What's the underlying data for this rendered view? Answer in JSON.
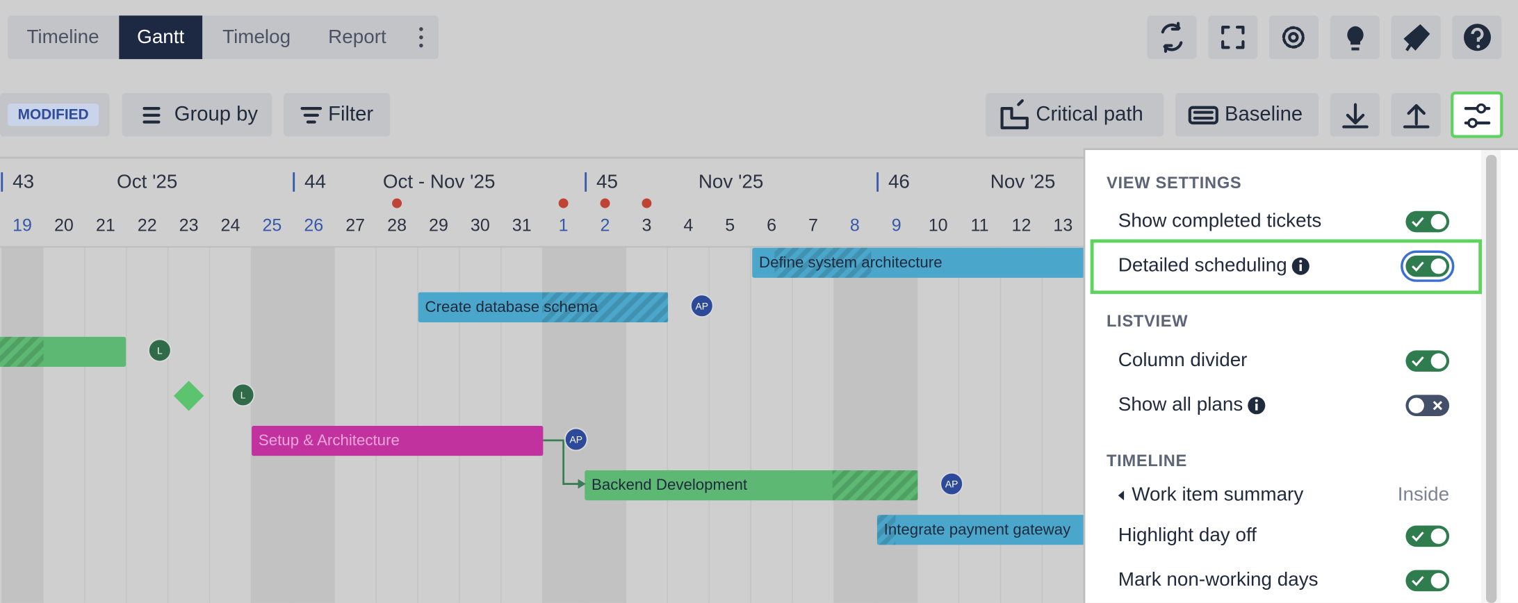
{
  "tabs": {
    "items": [
      "Timeline",
      "Gantt",
      "Timelog",
      "Report"
    ],
    "active": 1
  },
  "toolbar": {
    "badge": "MODIFIED",
    "buttons": [
      "Group by",
      "Filter",
      "Critical path",
      "Baseline"
    ]
  },
  "timeline": {
    "weeks": [
      {
        "number": "43",
        "month": "Oct '25"
      },
      {
        "number": "44",
        "month": "Oct - Nov '25"
      },
      {
        "number": "45",
        "month": "Nov '25"
      },
      {
        "number": "46",
        "month": "Nov '25"
      }
    ],
    "days": [
      {
        "label": "19",
        "weekend": true,
        "marker": false
      },
      {
        "label": "20",
        "weekend": false,
        "marker": false
      },
      {
        "label": "21",
        "weekend": false,
        "marker": false
      },
      {
        "label": "22",
        "weekend": false,
        "marker": false
      },
      {
        "label": "23",
        "weekend": false,
        "marker": false
      },
      {
        "label": "24",
        "weekend": false,
        "marker": false
      },
      {
        "label": "25",
        "weekend": true,
        "marker": false
      },
      {
        "label": "26",
        "weekend": true,
        "marker": false
      },
      {
        "label": "27",
        "weekend": false,
        "marker": false
      },
      {
        "label": "28",
        "weekend": false,
        "marker": true
      },
      {
        "label": "29",
        "weekend": false,
        "marker": false
      },
      {
        "label": "30",
        "weekend": false,
        "marker": false
      },
      {
        "label": "31",
        "weekend": false,
        "marker": false
      },
      {
        "label": "1",
        "weekend": true,
        "marker": true
      },
      {
        "label": "2",
        "weekend": true,
        "marker": true
      },
      {
        "label": "3",
        "weekend": false,
        "marker": true
      },
      {
        "label": "4",
        "weekend": false,
        "marker": false
      },
      {
        "label": "5",
        "weekend": false,
        "marker": false
      },
      {
        "label": "6",
        "weekend": false,
        "marker": false
      },
      {
        "label": "7",
        "weekend": false,
        "marker": false
      },
      {
        "label": "8",
        "weekend": true,
        "marker": false
      },
      {
        "label": "9",
        "weekend": true,
        "marker": false
      },
      {
        "label": "10",
        "weekend": false,
        "marker": false
      },
      {
        "label": "11",
        "weekend": false,
        "marker": false
      },
      {
        "label": "12",
        "weekend": false,
        "marker": false
      },
      {
        "label": "13",
        "weekend": false,
        "marker": false
      }
    ]
  },
  "tasks": [
    {
      "label": "Define system architecture",
      "color": "#4ba6cb"
    },
    {
      "label": "Create database schema",
      "color": "#4ba6cb"
    },
    {
      "label": "Setup & Architecture",
      "color": "#c2329f"
    },
    {
      "label": "Backend Development",
      "color": "#5cb872"
    },
    {
      "label": "Integrate payment gateway",
      "color": "#4ba6cb"
    }
  ],
  "avatars": [
    "AP",
    "L",
    "L",
    "AP",
    "AP"
  ],
  "settings": {
    "sections": [
      {
        "title": "VIEW SETTINGS",
        "items": [
          {
            "label": "Show completed tickets",
            "enabled": true
          },
          {
            "label": "Detailed scheduling",
            "enabled": true,
            "info": true,
            "highlighted": true
          }
        ]
      },
      {
        "title": "LISTVIEW",
        "items": [
          {
            "label": "Column divider",
            "enabled": true
          },
          {
            "label": "Show all plans",
            "enabled": false,
            "info": true
          }
        ]
      },
      {
        "title": "TIMELINE",
        "items": [
          {
            "label": "Work item summary",
            "value": "Inside"
          },
          {
            "label": "Highlight day off",
            "enabled": true
          },
          {
            "label": "Mark non-working days",
            "enabled": true
          }
        ]
      }
    ]
  }
}
